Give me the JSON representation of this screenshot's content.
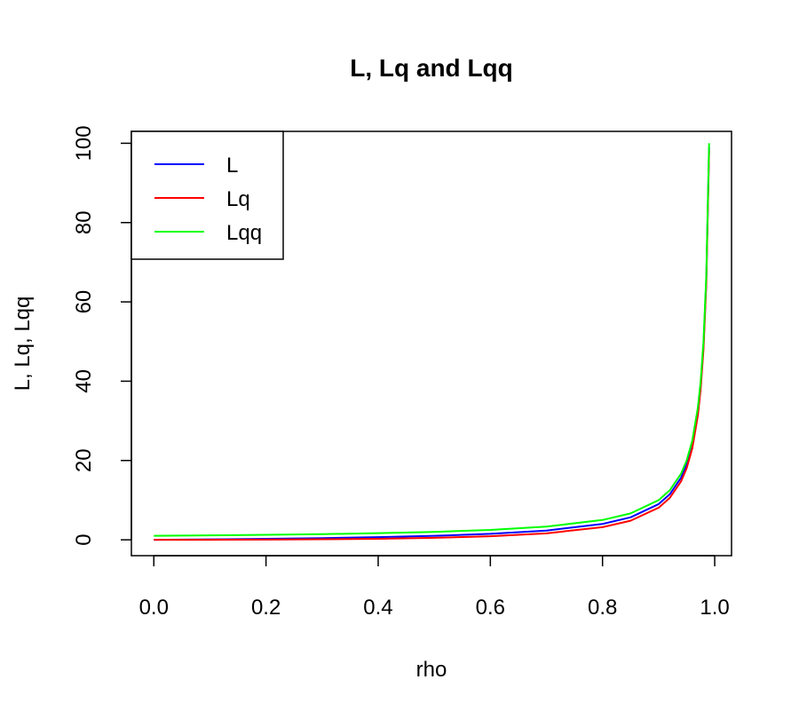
{
  "chart_data": {
    "type": "line",
    "title": "L, Lq and Lqq",
    "xlabel": "rho",
    "ylabel": "L, Lq, Lqq",
    "xlim": [
      -0.04,
      1.03
    ],
    "ylim": [
      -4,
      103
    ],
    "x_ticks": [
      "0.0",
      "0.2",
      "0.4",
      "0.6",
      "0.8",
      "1.0"
    ],
    "y_ticks": [
      "0",
      "20",
      "40",
      "60",
      "80",
      "100"
    ],
    "x": [
      0.0,
      0.1,
      0.2,
      0.3,
      0.4,
      0.5,
      0.6,
      0.7,
      0.8,
      0.85,
      0.9,
      0.92,
      0.94,
      0.95,
      0.96,
      0.97,
      0.975,
      0.98,
      0.985,
      0.99
    ],
    "series": [
      {
        "name": "L",
        "color": "#0000ff",
        "values": [
          0.0,
          0.111,
          0.25,
          0.429,
          0.667,
          1.0,
          1.5,
          2.333,
          4.0,
          5.667,
          9.0,
          11.5,
          15.667,
          19.0,
          24.0,
          32.333,
          39.0,
          49.0,
          65.667,
          99.0
        ]
      },
      {
        "name": "Lq",
        "color": "#ff0000",
        "values": [
          0.0,
          0.011,
          0.05,
          0.129,
          0.267,
          0.5,
          0.9,
          1.633,
          3.2,
          4.817,
          8.1,
          10.58,
          14.727,
          18.05,
          23.04,
          31.363,
          38.025,
          48.02,
          64.682,
          98.01
        ]
      },
      {
        "name": "Lqq",
        "color": "#00ff00",
        "values": [
          1.0,
          1.111,
          1.25,
          1.429,
          1.667,
          2.0,
          2.5,
          3.333,
          5.0,
          6.667,
          10.0,
          12.5,
          16.667,
          20.0,
          25.0,
          33.333,
          40.0,
          50.0,
          66.667,
          100.0
        ]
      }
    ],
    "grid": false,
    "legend_position": "top-left"
  }
}
